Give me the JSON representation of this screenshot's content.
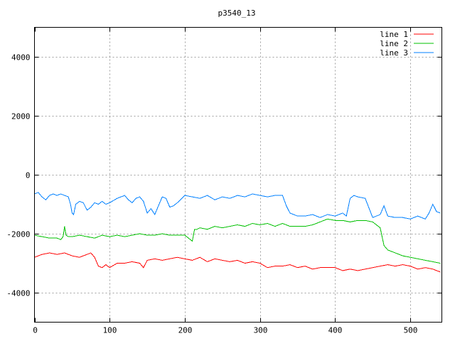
{
  "chart_data": {
    "type": "line",
    "title": "p3540_13",
    "xlabel": "",
    "ylabel": "",
    "xlim": [
      0,
      542
    ],
    "ylim": [
      -5000,
      5000
    ],
    "x_ticks": [
      0,
      100,
      200,
      300,
      400,
      500
    ],
    "y_ticks": [
      -4000,
      -2000,
      0,
      2000,
      4000
    ],
    "x_tick_labels": [
      "0",
      "100",
      "200",
      "300",
      "400",
      "500"
    ],
    "y_tick_labels": [
      "-4000",
      "-2000",
      "0",
      "2000",
      "4000"
    ],
    "grid": true,
    "legend_position": "top-right",
    "series": [
      {
        "name": "line 1",
        "color": "#ff0000",
        "x": [
          0,
          10,
          20,
          30,
          40,
          50,
          60,
          65,
          70,
          75,
          80,
          85,
          90,
          95,
          100,
          110,
          120,
          130,
          140,
          145,
          150,
          160,
          170,
          180,
          190,
          200,
          210,
          220,
          230,
          240,
          250,
          260,
          270,
          280,
          290,
          300,
          310,
          320,
          330,
          340,
          350,
          360,
          370,
          380,
          390,
          400,
          410,
          420,
          430,
          440,
          450,
          460,
          470,
          480,
          490,
          500,
          510,
          520,
          530,
          540
        ],
        "y": [
          -2800,
          -2700,
          -2650,
          -2700,
          -2650,
          -2750,
          -2800,
          -2750,
          -2700,
          -2650,
          -2800,
          -3100,
          -3150,
          -3050,
          -3150,
          -3000,
          -3000,
          -2950,
          -3000,
          -3150,
          -2900,
          -2850,
          -2900,
          -2850,
          -2800,
          -2850,
          -2900,
          -2800,
          -2950,
          -2850,
          -2900,
          -2950,
          -2900,
          -3000,
          -2950,
          -3000,
          -3150,
          -3100,
          -3100,
          -3050,
          -3150,
          -3100,
          -3200,
          -3150,
          -3150,
          -3150,
          -3250,
          -3200,
          -3250,
          -3200,
          -3150,
          -3100,
          -3050,
          -3100,
          -3050,
          -3100,
          -3200,
          -3150,
          -3200,
          -3300
        ]
      },
      {
        "name": "line 2",
        "color": "#00c000",
        "x": [
          0,
          10,
          20,
          30,
          35,
          38,
          40,
          42,
          45,
          50,
          60,
          70,
          80,
          90,
          100,
          110,
          120,
          130,
          140,
          150,
          160,
          170,
          180,
          190,
          200,
          205,
          210,
          213,
          216,
          220,
          230,
          240,
          250,
          260,
          270,
          280,
          290,
          300,
          310,
          320,
          330,
          340,
          350,
          360,
          370,
          380,
          390,
          400,
          410,
          420,
          430,
          440,
          450,
          460,
          465,
          470,
          480,
          490,
          500,
          510,
          520,
          530,
          540
        ],
        "y": [
          -2050,
          -2100,
          -2150,
          -2150,
          -2200,
          -2100,
          -1750,
          -2050,
          -2100,
          -2100,
          -2050,
          -2100,
          -2150,
          -2050,
          -2100,
          -2050,
          -2100,
          -2050,
          -2000,
          -2050,
          -2050,
          -2000,
          -2050,
          -2050,
          -2050,
          -2150,
          -2250,
          -1850,
          -1850,
          -1800,
          -1850,
          -1750,
          -1800,
          -1750,
          -1700,
          -1750,
          -1650,
          -1700,
          -1650,
          -1750,
          -1650,
          -1750,
          -1750,
          -1750,
          -1700,
          -1600,
          -1500,
          -1550,
          -1550,
          -1600,
          -1550,
          -1550,
          -1600,
          -1800,
          -2400,
          -2550,
          -2650,
          -2750,
          -2800,
          -2850,
          -2900,
          -2950,
          -3000
        ]
      },
      {
        "name": "line 3",
        "color": "#0080ff",
        "x": [
          0,
          5,
          10,
          15,
          20,
          25,
          30,
          35,
          40,
          45,
          48,
          50,
          52,
          55,
          60,
          65,
          70,
          75,
          80,
          85,
          90,
          95,
          100,
          110,
          120,
          125,
          130,
          135,
          140,
          145,
          150,
          155,
          160,
          165,
          170,
          175,
          180,
          185,
          190,
          200,
          210,
          220,
          230,
          240,
          250,
          260,
          270,
          280,
          290,
          300,
          310,
          320,
          330,
          335,
          340,
          350,
          360,
          370,
          380,
          390,
          400,
          410,
          415,
          420,
          425,
          430,
          440,
          450,
          460,
          465,
          470,
          480,
          490,
          500,
          510,
          520,
          525,
          530,
          535,
          540
        ],
        "y": [
          -650,
          -600,
          -750,
          -850,
          -700,
          -650,
          -700,
          -650,
          -700,
          -750,
          -1000,
          -1300,
          -1350,
          -1000,
          -900,
          -950,
          -1200,
          -1100,
          -950,
          -1000,
          -900,
          -1000,
          -950,
          -800,
          -700,
          -850,
          -950,
          -800,
          -750,
          -900,
          -1300,
          -1150,
          -1350,
          -1050,
          -750,
          -800,
          -1100,
          -1050,
          -950,
          -700,
          -750,
          -800,
          -700,
          -850,
          -750,
          -800,
          -700,
          -750,
          -650,
          -700,
          -750,
          -700,
          -700,
          -1050,
          -1300,
          -1400,
          -1400,
          -1350,
          -1450,
          -1350,
          -1400,
          -1300,
          -1400,
          -800,
          -700,
          -750,
          -800,
          -1450,
          -1350,
          -1050,
          -1400,
          -1450,
          -1450,
          -1500,
          -1400,
          -1500,
          -1300,
          -1000,
          -1250,
          -1300
        ]
      }
    ]
  }
}
